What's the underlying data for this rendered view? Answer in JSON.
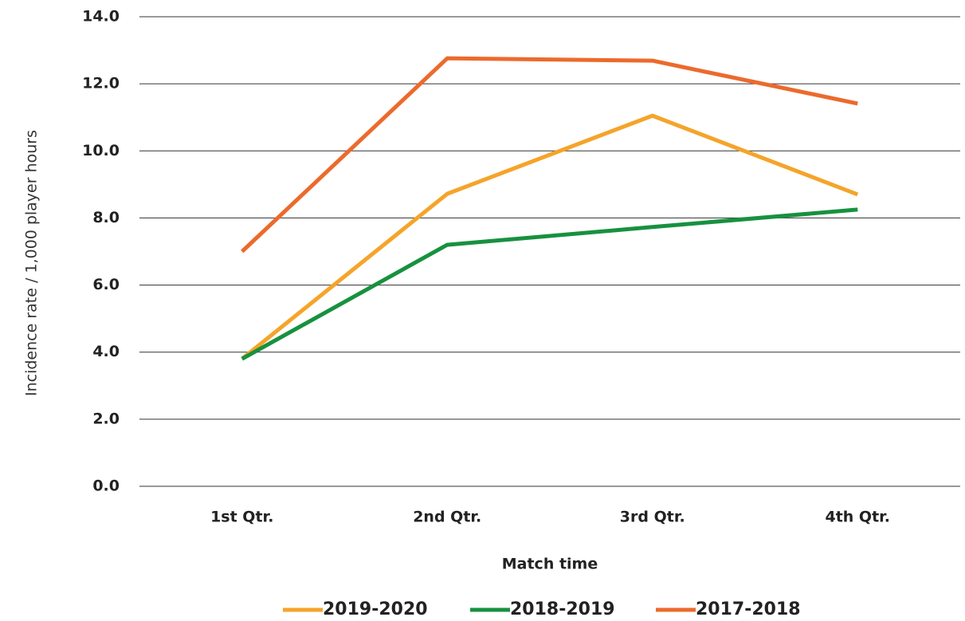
{
  "chart_data": {
    "type": "line",
    "x_label": "Match time",
    "y_label": "Incidence rate / 1,000 player hours",
    "categories": [
      "1st Qtr.",
      "2nd Qtr.",
      "3rd Qtr.",
      "4th Qtr."
    ],
    "series": [
      {
        "name": "2019-2020",
        "color": "#f5a42a",
        "values": [
          3.8,
          8.72,
          11.05,
          8.7
        ]
      },
      {
        "name": "2018-2019",
        "color": "#17913f",
        "values": [
          3.8,
          7.2,
          7.73,
          8.25
        ]
      },
      {
        "name": "2017-2018",
        "color": "#ec6a2c",
        "values": [
          7.0,
          12.76,
          12.69,
          11.41
        ]
      }
    ],
    "ylim": [
      0,
      14
    ],
    "yticks": [
      {
        "value": 0,
        "label": "0.0"
      },
      {
        "value": 2,
        "label": "2.0"
      },
      {
        "value": 4,
        "label": "4.0"
      },
      {
        "value": 6,
        "label": "6.0"
      },
      {
        "value": 8,
        "label": "8.0"
      },
      {
        "value": 10,
        "label": "10.0"
      },
      {
        "value": 12,
        "label": "12.0"
      },
      {
        "value": 14,
        "label": "14.0"
      }
    ],
    "grid": true,
    "legend": "bottom"
  }
}
